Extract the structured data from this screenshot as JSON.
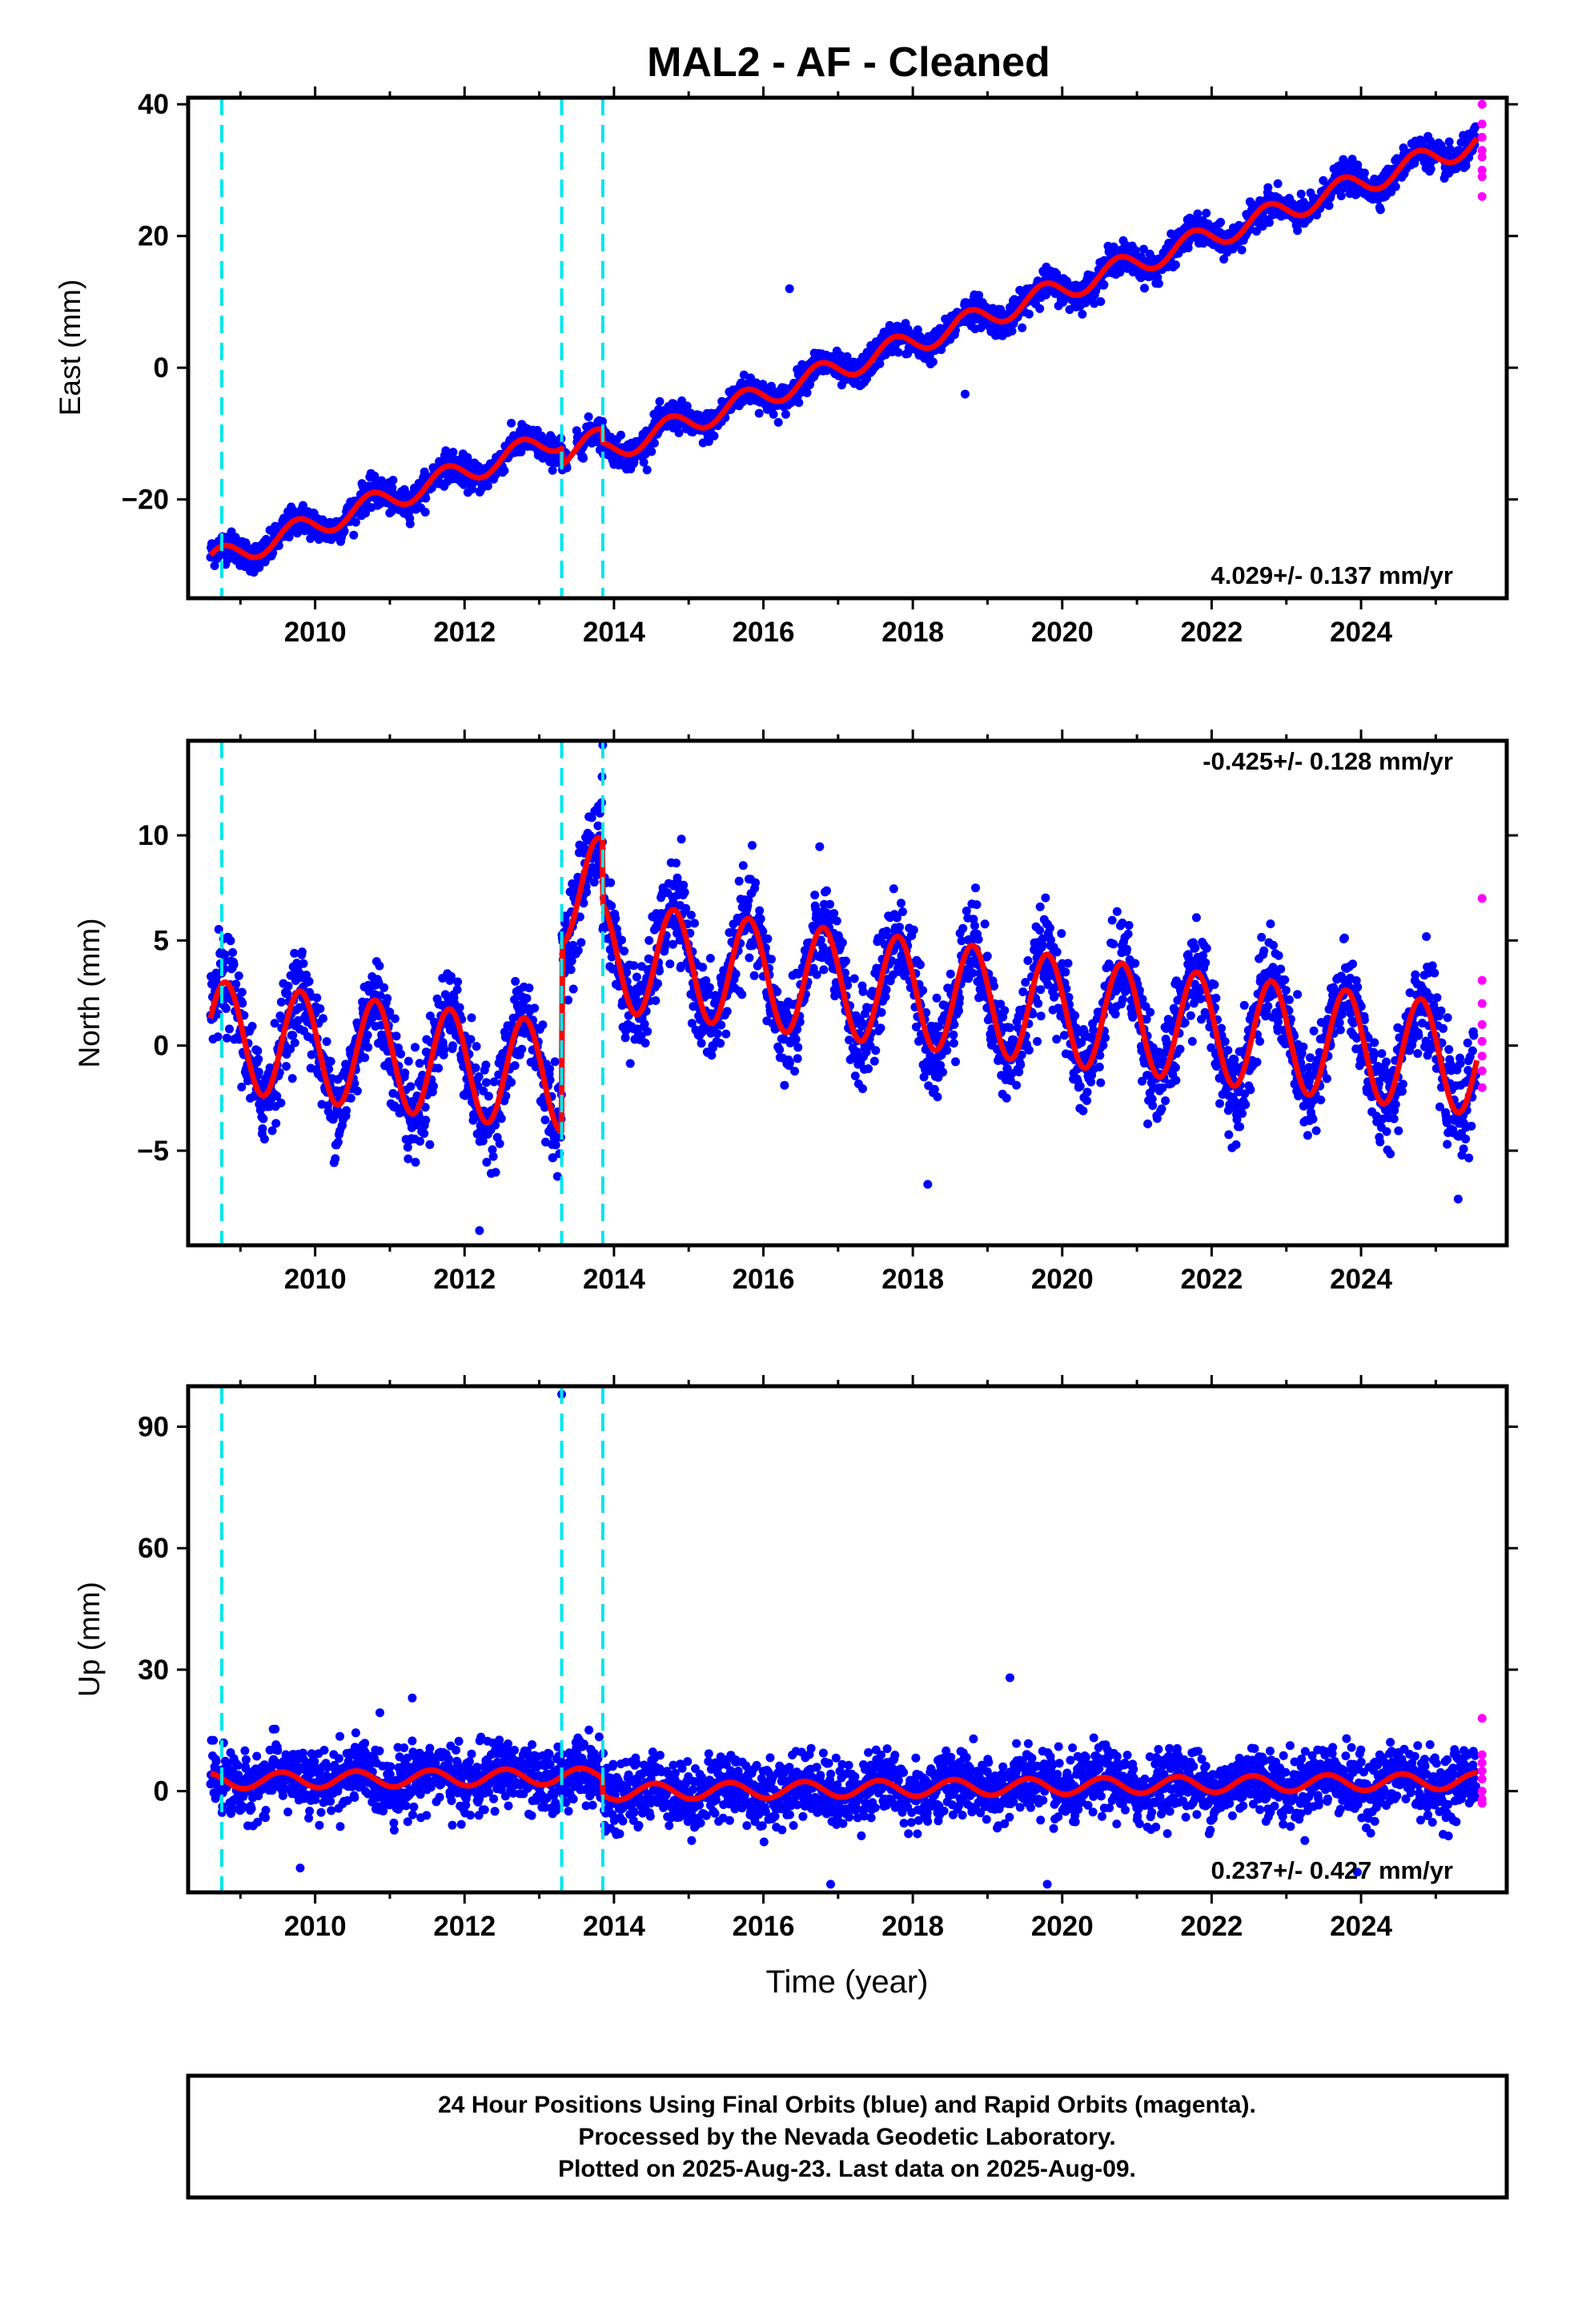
{
  "title": "MAL2  - AF - Cleaned",
  "x_label": "Time (year)",
  "footer": {
    "line1": "24 Hour Positions Using Final Orbits (blue) and Rapid Orbits (magenta).",
    "line2": "Processed by the Nevada Geodetic Laboratory.",
    "line3": "Plotted on 2025-Aug-23. Last data on 2025-Aug-09."
  },
  "colors": {
    "final_orbits": "#0000ff",
    "rapid_orbits": "#ff00ff",
    "model_fit": "#ff0000",
    "equipment_change": "#00e5ee"
  },
  "chart_data": [
    {
      "type": "scatter",
      "name": "east",
      "ylabel": "East (mm)",
      "xlim": [
        2008.3,
        2025.95
      ],
      "ylim": [
        -35,
        41
      ],
      "xticks": [
        2010,
        2012,
        2014,
        2016,
        2018,
        2020,
        2022,
        2024
      ],
      "yticks": [
        -20,
        0,
        20,
        40
      ],
      "rate_label": "4.029+/- 0.137 mm/yr",
      "rate_label_position": "bottom-right",
      "equipment_changes": [
        2008.75,
        2013.3,
        2013.85
      ],
      "model": {
        "start": 2008.6,
        "end": 2025.55,
        "intercept": -29.5,
        "rate": 4.029,
        "seasonal_amplitude": 1.8,
        "seasonal_phase_year": 0.5,
        "offsets": [
          {
            "epoch": 2013.3,
            "value": -2.5
          },
          {
            "epoch": 2013.85,
            "value": -2.0
          }
        ]
      },
      "scatter_sigma": 1.1,
      "outliers": [
        {
          "x": 2016.35,
          "y": 12.0
        },
        {
          "x": 2018.7,
          "y": -4.0
        }
      ],
      "rapid_orbits": {
        "x": 2025.62,
        "y": [
          40,
          37,
          35,
          33,
          32,
          30,
          29,
          26
        ]
      }
    },
    {
      "type": "scatter",
      "name": "north",
      "ylabel": "North (mm)",
      "xlim": [
        2008.3,
        2025.95
      ],
      "ylim": [
        -9.5,
        14.5
      ],
      "xticks": [
        2010,
        2012,
        2014,
        2016,
        2018,
        2020,
        2022,
        2024
      ],
      "yticks": [
        -5,
        0,
        5,
        10
      ],
      "rate_label": "-0.425+/- 0.128 mm/yr",
      "rate_label_position": "top-right",
      "equipment_changes": [
        2008.75,
        2013.3,
        2013.85
      ],
      "model": {
        "start": 2008.6,
        "end": 2025.55,
        "intercept": 0.5,
        "rate": -0.425,
        "seasonal_amplitude": 2.6,
        "seasonal_phase_year": 0.55,
        "offsets": [
          {
            "epoch": 2013.3,
            "value": 9.0
          },
          {
            "epoch": 2013.85,
            "value": -3.0
          }
        ]
      },
      "scatter_sigma": 1.1,
      "outliers": [
        {
          "x": 2013.85,
          "y": 14.3
        },
        {
          "x": 2012.2,
          "y": -8.8
        },
        {
          "x": 2018.2,
          "y": -6.6
        },
        {
          "x": 2025.3,
          "y": -7.3
        }
      ],
      "rapid_orbits": {
        "x": 2025.62,
        "y": [
          7.0,
          3.1,
          2.0,
          1.0,
          0.2,
          -0.5,
          -1.2,
          -2.0
        ]
      }
    },
    {
      "type": "scatter",
      "name": "up",
      "ylabel": "Up (mm)",
      "xlim": [
        2008.3,
        2025.95
      ],
      "ylim": [
        -25,
        100
      ],
      "xticks": [
        2010,
        2012,
        2014,
        2016,
        2018,
        2020,
        2022,
        2024
      ],
      "yticks": [
        0,
        30,
        60,
        90
      ],
      "rate_label": "0.237+/- 0.427 mm/yr",
      "rate_label_position": "bottom-right",
      "equipment_changes": [
        2008.75,
        2013.3,
        2013.85
      ],
      "model": {
        "start": 2008.6,
        "end": 2025.55,
        "intercept": 2.5,
        "rate": 0.237,
        "seasonal_amplitude": 2.0,
        "seasonal_phase_year": 0.3,
        "offsets": [
          {
            "epoch": 2013.3,
            "value": 0.0
          },
          {
            "epoch": 2013.85,
            "value": -4.0
          }
        ]
      },
      "scatter_sigma": 4.0,
      "outliers": [
        {
          "x": 2013.3,
          "y": 98
        },
        {
          "x": 2019.3,
          "y": 28
        },
        {
          "x": 2011.3,
          "y": 23
        },
        {
          "x": 2016.9,
          "y": -23
        },
        {
          "x": 2019.8,
          "y": -23
        },
        {
          "x": 2009.8,
          "y": -19
        },
        {
          "x": 2023.95,
          "y": -20
        }
      ],
      "rapid_orbits": {
        "x": 2025.62,
        "y": [
          18,
          9,
          7,
          5,
          3,
          0,
          -2,
          -3
        ]
      }
    }
  ]
}
